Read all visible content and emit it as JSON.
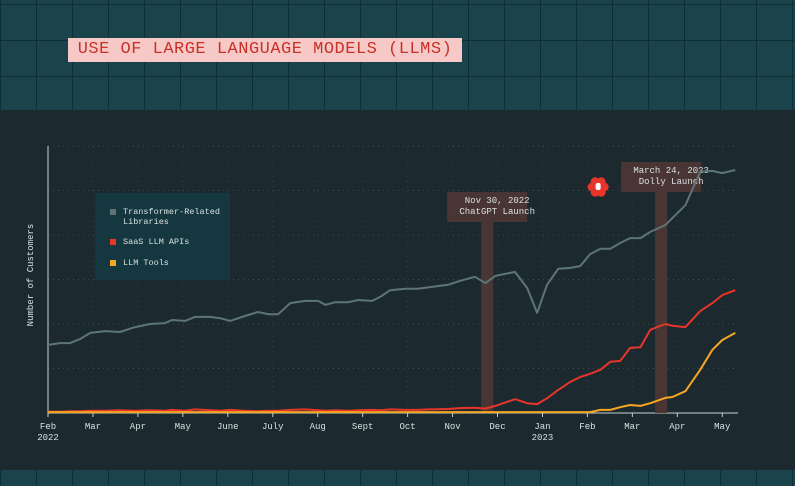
{
  "chart_data": {
    "type": "line",
    "title": "USE OF LARGE LANGUAGE MODELS (LLMS)",
    "ylabel": "Number of Customers",
    "x": [
      0,
      0.27,
      0.49,
      0.71,
      0.94,
      1.27,
      1.6,
      1.94,
      2.27,
      2.6,
      2.76,
      3.05,
      3.27,
      3.61,
      3.83,
      4.05,
      4.38,
      4.67,
      4.9,
      5.12,
      5.39,
      5.72,
      6.01,
      6.17,
      6.39,
      6.68,
      6.9,
      7.21,
      7.39,
      7.61,
      7.95,
      8.23,
      8.5,
      8.9,
      9.17,
      9.5,
      9.73,
      9.95,
      10.39,
      10.66,
      10.88,
      11.1,
      11.35,
      11.62,
      11.84,
      12.06,
      12.29,
      12.51,
      12.73,
      12.95,
      13.18,
      13.4,
      13.73,
      13.89,
      14.18,
      14.51,
      14.78,
      15,
      15.29
    ],
    "xlim": [
      0,
      15.35
    ],
    "xticks": [
      {
        "value": 0,
        "label": "Feb"
      },
      {
        "value": 1,
        "label": "Mar"
      },
      {
        "value": 2,
        "label": "Apr"
      },
      {
        "value": 3,
        "label": "May"
      },
      {
        "value": 4,
        "label": "June"
      },
      {
        "value": 5,
        "label": "July"
      },
      {
        "value": 6,
        "label": "Aug"
      },
      {
        "value": 7,
        "label": "Sept"
      },
      {
        "value": 8,
        "label": "Oct"
      },
      {
        "value": 9,
        "label": "Nov"
      },
      {
        "value": 10,
        "label": "Dec"
      },
      {
        "value": 11,
        "label": "Jan"
      },
      {
        "value": 12,
        "label": "Feb"
      },
      {
        "value": 13,
        "label": "Mar"
      },
      {
        "value": 14,
        "label": "Apr"
      },
      {
        "value": 15,
        "label": "May"
      }
    ],
    "year_labels": [
      {
        "value": 0,
        "label": "2022"
      },
      {
        "value": 11,
        "label": "2023"
      }
    ],
    "ylim": [
      0,
      6
    ],
    "grid": true,
    "series": [
      {
        "name": "Transformer-Related Libraries",
        "color": "#5d7575",
        "values": [
          1.53,
          1.57,
          1.57,
          1.66,
          1.8,
          1.84,
          1.82,
          1.93,
          2,
          2.02,
          2.09,
          2.07,
          2.16,
          2.16,
          2.13,
          2.07,
          2.18,
          2.27,
          2.22,
          2.22,
          2.47,
          2.52,
          2.52,
          2.43,
          2.49,
          2.49,
          2.54,
          2.52,
          2.61,
          2.76,
          2.79,
          2.79,
          2.83,
          2.88,
          2.97,
          3.06,
          2.92,
          3.08,
          3.17,
          2.81,
          2.25,
          2.88,
          3.24,
          3.26,
          3.3,
          3.57,
          3.69,
          3.69,
          3.82,
          3.93,
          3.93,
          4.07,
          4.22,
          4.38,
          4.67,
          5.42,
          5.44,
          5.39,
          5.46
        ]
      },
      {
        "name": "SaaS LLM APIs",
        "color": "#e8352a",
        "values": [
          0.03,
          0.03,
          0.04,
          0.04,
          0.05,
          0.05,
          0.06,
          0.05,
          0.06,
          0.05,
          0.07,
          0.05,
          0.08,
          0.06,
          0.05,
          0.07,
          0.05,
          0.04,
          0.05,
          0.05,
          0.07,
          0.08,
          0.06,
          0.05,
          0.06,
          0.05,
          0.06,
          0.07,
          0.06,
          0.08,
          0.07,
          0.07,
          0.08,
          0.09,
          0.11,
          0.12,
          0.1,
          0.16,
          0.31,
          0.22,
          0.2,
          0.33,
          0.52,
          0.7,
          0.81,
          0.88,
          0.97,
          1.15,
          1.17,
          1.46,
          1.48,
          1.87,
          2,
          1.96,
          1.93,
          2.29,
          2.47,
          2.65,
          2.76
        ]
      },
      {
        "name": "LLM Tools",
        "color": "#f5a623",
        "values": [
          0.02,
          0.02,
          0.02,
          0.02,
          0.02,
          0.02,
          0.02,
          0.02,
          0.02,
          0.02,
          0.02,
          0.02,
          0.02,
          0.02,
          0.02,
          0.02,
          0.02,
          0.02,
          0.02,
          0.02,
          0.02,
          0.02,
          0.02,
          0.02,
          0.02,
          0.02,
          0.02,
          0.02,
          0.02,
          0.02,
          0.02,
          0.02,
          0.02,
          0.02,
          0.02,
          0.02,
          0.02,
          0.02,
          0.02,
          0.02,
          0.02,
          0.02,
          0.02,
          0.02,
          0.02,
          0.02,
          0.07,
          0.07,
          0.13,
          0.18,
          0.16,
          0.22,
          0.34,
          0.36,
          0.49,
          0.97,
          1.42,
          1.64,
          1.8
        ]
      }
    ],
    "annotations": [
      {
        "x": 9.77,
        "date": "Nov 30, 2022",
        "event": "ChatGPT Launch"
      },
      {
        "x": 13.64,
        "date": "March 24, 2023",
        "event": "Dolly Launch"
      }
    ]
  }
}
